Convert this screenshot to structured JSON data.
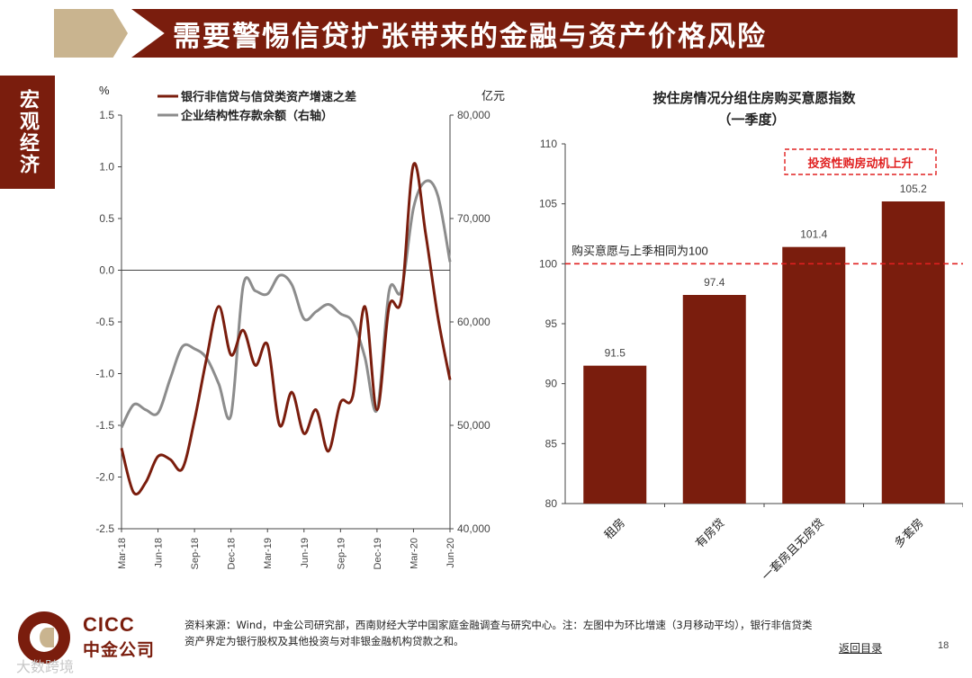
{
  "header": {
    "title": "需要警惕信贷扩张带来的金融与资产价格风险"
  },
  "side_tab": {
    "label": "宏观经济"
  },
  "left_chart": {
    "left_unit": "%",
    "right_unit": "亿元",
    "left_ticks": [
      "1.5",
      "1.0",
      "0.5",
      "0.0",
      "-0.5",
      "-1.0",
      "-1.5",
      "-2.0",
      "-2.5"
    ],
    "right_ticks": [
      "80,000",
      "70,000",
      "60,000",
      "50,000",
      "40,000"
    ],
    "x_ticks": [
      "Mar-18",
      "Jun-18",
      "Sep-18",
      "Dec-18",
      "Mar-19",
      "Jun-19",
      "Sep-19",
      "Dec-19",
      "Mar-20",
      "Jun-20"
    ],
    "legend": [
      "银行非信贷与信贷类资产增速之差",
      "企业结构性存款余额（右轴）"
    ]
  },
  "right_chart": {
    "title_line1": "按住房情况分组住房购买意愿指数",
    "title_line2": "（一季度）",
    "y_ticks": [
      "110",
      "105",
      "100",
      "95",
      "90",
      "85",
      "80"
    ],
    "ref_label": "购买意愿与上季相同为100",
    "annotation": "投资性购房动机上升",
    "bar_labels": [
      "91.5",
      "97.4",
      "101.4",
      "105.2"
    ],
    "categories": [
      "租房",
      "有房贷",
      "一套房且无房贷",
      "多套房"
    ]
  },
  "colors": {
    "brand": "#7a1d0d",
    "accent_tan": "#c9b48f",
    "series_gray": "#8c8c8c",
    "ref_red": "#e02020"
  },
  "chart_data": [
    {
      "type": "line",
      "x": [
        "Mar-18",
        "Apr-18",
        "May-18",
        "Jun-18",
        "Jul-18",
        "Aug-18",
        "Sep-18",
        "Oct-18",
        "Nov-18",
        "Dec-18",
        "Jan-19",
        "Feb-19",
        "Mar-19",
        "Apr-19",
        "May-19",
        "Jun-19",
        "Jul-19",
        "Aug-19",
        "Sep-19",
        "Oct-19",
        "Nov-19",
        "Dec-19",
        "Jan-20",
        "Feb-20",
        "Mar-20",
        "Apr-20",
        "May-20",
        "Jun-20"
      ],
      "series": [
        {
          "name": "银行非信贷与信贷类资产增速之差",
          "axis": "left",
          "values": [
            -1.72,
            -2.15,
            -2.05,
            -1.8,
            -1.83,
            -1.92,
            -1.45,
            -0.85,
            -0.35,
            -0.82,
            -0.58,
            -0.92,
            -0.72,
            -1.5,
            -1.18,
            -1.58,
            -1.35,
            -1.75,
            -1.28,
            -1.22,
            -0.35,
            -1.35,
            -0.35,
            -0.28,
            1.02,
            0.35,
            -0.45,
            -1.06
          ]
        },
        {
          "name": "企业结构性存款余额（右轴）",
          "axis": "right",
          "values": [
            49800,
            52000,
            51500,
            51200,
            54500,
            57600,
            57400,
            56500,
            54000,
            51000,
            63500,
            63000,
            62700,
            64500,
            63600,
            60300,
            61000,
            61700,
            60800,
            60000,
            56600,
            51500,
            63000,
            63000,
            71000,
            73600,
            72200,
            65800
          ]
        }
      ],
      "ylim_left": [
        -2.5,
        1.5
      ],
      "ylim_right": [
        40000,
        80000
      ]
    },
    {
      "type": "bar",
      "title": "按住房情况分组住房购买意愿指数（一季度）",
      "categories": [
        "租房",
        "有房贷",
        "一套房且无房贷",
        "多套房"
      ],
      "values": [
        91.5,
        97.4,
        101.4,
        105.2
      ],
      "ylim": [
        80,
        110
      ],
      "reference_line": 100
    }
  ],
  "footer": {
    "note_line1": "资料来源：Wind，中金公司研究部，西南财经大学中国家庭金融调查与研究中心。注：左图中为环比增速（3月移动平均），银行非信贷类",
    "note_line2": "资产界定为银行股权及其他投资与对非银金融机构贷款之和。",
    "back_link": "返回目录",
    "page_number": "18"
  },
  "logo": {
    "en": "CICC",
    "cn": "中金公司"
  },
  "watermark": "大数跨境"
}
